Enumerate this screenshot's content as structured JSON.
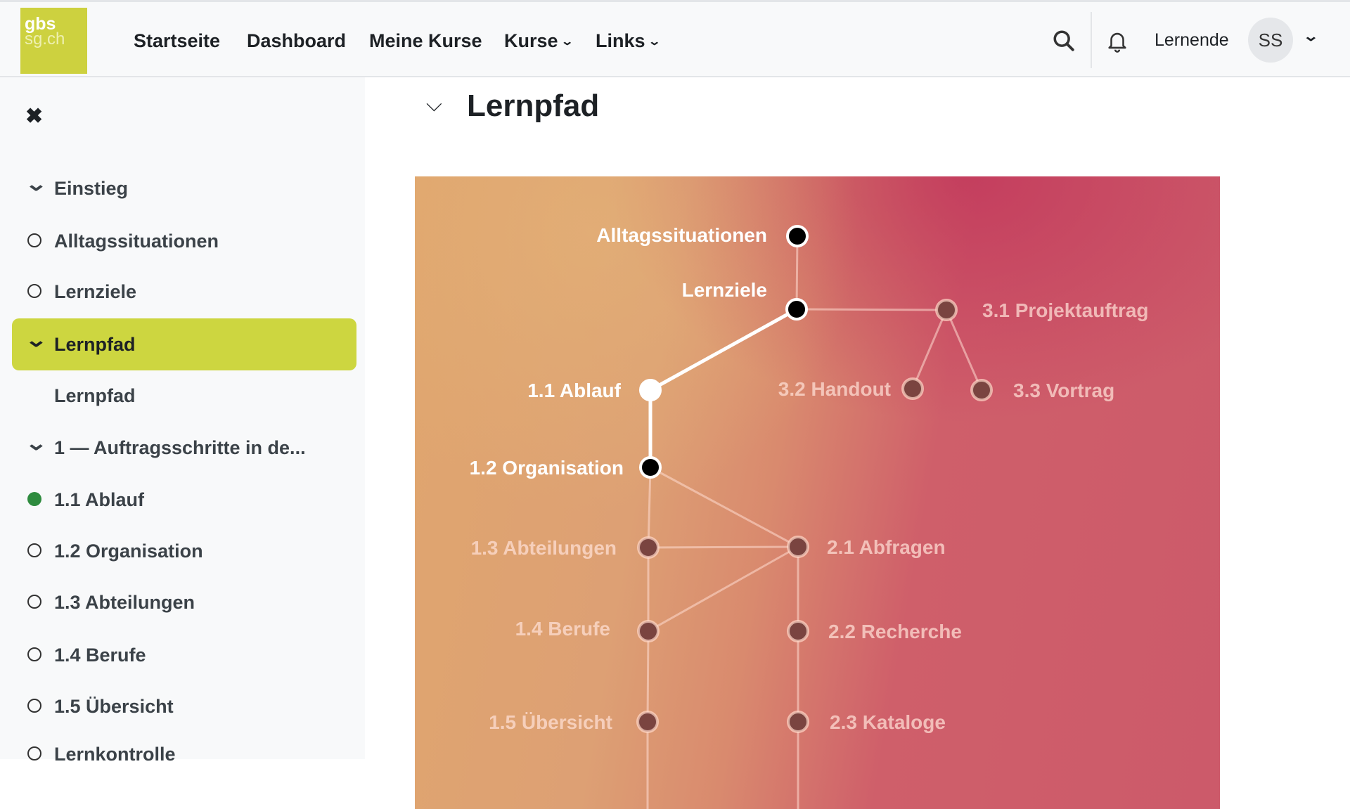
{
  "header": {
    "logo_top": "gbs",
    "logo_bottom": "sg.ch",
    "nav": [
      "Startseite",
      "Dashboard",
      "Meine Kurse",
      "Kurse",
      "Links"
    ],
    "user_role": "Lernende",
    "avatar_initials": "SS"
  },
  "sidebar": {
    "items": [
      {
        "label": "Einstieg",
        "icon": "chevron-down"
      },
      {
        "label": "Alltagssituationen",
        "icon": "circle"
      },
      {
        "label": "Lernziele",
        "icon": "circle"
      },
      {
        "label": "Lernpfad",
        "icon": "chevron-down",
        "active": true
      },
      {
        "label": "Lernpfad",
        "icon": "none"
      },
      {
        "label": "1 — Auftragsschritte in de...",
        "icon": "chevron-down"
      },
      {
        "label": "1.1 Ablauf",
        "icon": "filled-dot"
      },
      {
        "label": "1.2 Organisation",
        "icon": "circle"
      },
      {
        "label": "1.3 Abteilungen",
        "icon": "circle"
      },
      {
        "label": "1.4 Berufe",
        "icon": "circle"
      },
      {
        "label": "1.5 Übersicht",
        "icon": "circle"
      },
      {
        "label": "Lernkontrolle",
        "icon": "circle"
      }
    ]
  },
  "main": {
    "title": "Lernpfad"
  },
  "colors": {
    "accent": "#cdd640",
    "logo": "#cdd13f",
    "completed": "#2e8b3e"
  },
  "path": {
    "nodes": [
      {
        "id": "alltag",
        "label": "Alltagssituationen",
        "state": "open"
      },
      {
        "id": "lernziele",
        "label": "Lernziele",
        "state": "open"
      },
      {
        "id": "n11",
        "label": "1.1 Ablauf",
        "state": "current"
      },
      {
        "id": "n12",
        "label": "1.2 Organisation",
        "state": "open"
      },
      {
        "id": "n13",
        "label": "1.3 Abteilungen",
        "state": "locked"
      },
      {
        "id": "n14",
        "label": "1.4 Berufe",
        "state": "locked"
      },
      {
        "id": "n15",
        "label": "1.5 Übersicht",
        "state": "locked"
      },
      {
        "id": "n21",
        "label": "2.1 Abfragen",
        "state": "locked"
      },
      {
        "id": "n22",
        "label": "2.2 Recherche",
        "state": "locked"
      },
      {
        "id": "n23",
        "label": "2.3 Kataloge",
        "state": "locked"
      },
      {
        "id": "n31",
        "label": "3.1 Projektauftrag",
        "state": "locked"
      },
      {
        "id": "n32",
        "label": "3.2 Handout",
        "state": "locked"
      },
      {
        "id": "n33",
        "label": "3.3 Vortrag",
        "state": "locked"
      }
    ]
  }
}
